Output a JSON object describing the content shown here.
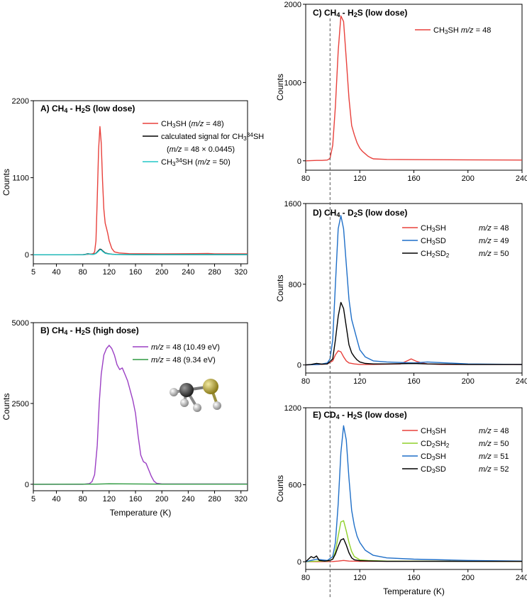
{
  "figure": {
    "x_axis_title": "Temperature (K)",
    "y_axis_title": "Counts"
  },
  "chart_data": [
    {
      "id": "A",
      "type": "line",
      "title": "A) CH₄ - H₂S (low dose)",
      "xlabel": "",
      "ylabel": "Counts",
      "xlim": [
        5,
        330
      ],
      "ylim": [
        -130,
        2200
      ],
      "xticks": [
        5,
        40,
        80,
        120,
        160,
        200,
        240,
        280,
        320
      ],
      "yticks": [
        0,
        1100,
        2200
      ],
      "series": [
        {
          "name": "CH₃SH (m/z = 48)",
          "color": "#e8413c",
          "x": [
            5,
            60,
            84,
            88,
            92,
            96,
            98,
            100,
            102,
            104,
            106,
            108,
            110,
            112,
            114,
            116,
            118,
            120,
            124,
            128,
            135,
            150,
            200,
            250,
            270,
            280,
            330
          ],
          "y": [
            0,
            0,
            3,
            6,
            8,
            15,
            40,
            200,
            800,
            1500,
            1830,
            1600,
            1050,
            650,
            450,
            380,
            300,
            200,
            90,
            40,
            25,
            15,
            12,
            15,
            18,
            12,
            12
          ]
        },
        {
          "name": "calculated signal for CH₃³⁴SH (m/z = 48 × 0.0445)",
          "color": "#000000",
          "x": [
            5,
            80,
            84,
            88,
            92,
            96,
            100,
            104,
            106,
            108,
            110,
            114,
            118,
            124,
            130,
            160,
            330
          ],
          "y": [
            0,
            0,
            5,
            15,
            8,
            5,
            20,
            60,
            80,
            75,
            55,
            25,
            15,
            8,
            4,
            2,
            2
          ]
        },
        {
          "name": "CH₃³⁴SH (m/z = 50)",
          "color": "#22c7c7",
          "x": [
            5,
            80,
            84,
            88,
            92,
            96,
            100,
            104,
            106,
            108,
            110,
            114,
            118,
            124,
            130,
            160,
            330
          ],
          "y": [
            0,
            0,
            3,
            12,
            6,
            4,
            16,
            50,
            72,
            68,
            48,
            20,
            12,
            6,
            3,
            2,
            2
          ]
        }
      ]
    },
    {
      "id": "B",
      "type": "line",
      "title": "B) CH₄ - H₂S (high dose)",
      "xlabel": "Temperature (K)",
      "ylabel": "Counts",
      "xlim": [
        5,
        330
      ],
      "ylim": [
        -200,
        5000
      ],
      "xticks": [
        5,
        40,
        80,
        120,
        160,
        200,
        240,
        280,
        320
      ],
      "yticks": [
        0,
        2500,
        5000
      ],
      "series": [
        {
          "name": "m/z = 48 (10.49 eV)",
          "color": "#9b3fc4",
          "x": [
            5,
            80,
            90,
            94,
            98,
            102,
            105,
            108,
            112,
            116,
            120,
            124,
            128,
            132,
            136,
            140,
            144,
            148,
            152,
            156,
            160,
            164,
            168,
            172,
            176,
            180,
            184,
            188,
            192,
            200,
            250,
            300,
            330
          ],
          "y": [
            0,
            0,
            20,
            80,
            300,
            1200,
            2500,
            3400,
            4000,
            4200,
            4300,
            4200,
            4000,
            3700,
            3550,
            3600,
            3400,
            3200,
            2900,
            2600,
            2200,
            1500,
            900,
            700,
            650,
            450,
            250,
            100,
            30,
            10,
            10,
            10,
            10
          ]
        },
        {
          "name": "m/z = 48 (9.34 eV)",
          "color": "#2e9a40",
          "x": [
            5,
            100,
            120,
            200,
            330
          ],
          "y": [
            0,
            5,
            15,
            5,
            3
          ]
        }
      ]
    },
    {
      "id": "C",
      "type": "line",
      "title": "C) CH₄ - H₂S (low dose)",
      "xlabel": "",
      "ylabel": "Counts",
      "xlim": [
        80,
        240
      ],
      "ylim": [
        -120,
        2000
      ],
      "xticks": [
        80,
        120,
        160,
        200,
        240
      ],
      "yticks": [
        0,
        1000,
        2000
      ],
      "series": [
        {
          "name": "CH₃SH m/z = 48",
          "color": "#e8413c",
          "x": [
            80,
            88,
            92,
            96,
            98,
            100,
            102,
            104,
            106,
            108,
            110,
            112,
            114,
            116,
            118,
            120,
            122,
            124,
            126,
            128,
            130,
            140,
            160,
            200,
            240
          ],
          "y": [
            0,
            5,
            5,
            10,
            30,
            200,
            700,
            1400,
            1850,
            1780,
            1300,
            800,
            450,
            330,
            230,
            160,
            120,
            90,
            60,
            40,
            25,
            18,
            15,
            12,
            10
          ]
        }
      ]
    },
    {
      "id": "D",
      "type": "line",
      "title": "D) CH₄ - D₂S (low dose)",
      "xlabel": "",
      "ylabel": "Counts",
      "xlim": [
        80,
        240
      ],
      "ylim": [
        -80,
        1600
      ],
      "xticks": [
        80,
        120,
        160,
        200,
        240
      ],
      "yticks": [
        0,
        800,
        1600
      ],
      "series": [
        {
          "name": "CH₃SH",
          "mz": "m/z = 48",
          "color": "#e8413c",
          "x": [
            80,
            90,
            96,
            100,
            102,
            104,
            106,
            108,
            110,
            112,
            116,
            120,
            130,
            150,
            155,
            158,
            162,
            166,
            170,
            180,
            240
          ],
          "y": [
            0,
            5,
            10,
            40,
            100,
            140,
            130,
            80,
            40,
            20,
            10,
            5,
            5,
            10,
            40,
            60,
            35,
            20,
            10,
            5,
            5
          ]
        },
        {
          "name": "CH₃SD",
          "mz": "m/z = 49",
          "color": "#1f6fc8",
          "x": [
            80,
            90,
            96,
            98,
            100,
            102,
            104,
            106,
            108,
            110,
            112,
            114,
            116,
            118,
            120,
            124,
            130,
            140,
            160,
            170,
            200,
            240
          ],
          "y": [
            0,
            5,
            20,
            60,
            250,
            800,
            1350,
            1480,
            1350,
            1000,
            650,
            450,
            350,
            250,
            150,
            80,
            40,
            30,
            20,
            30,
            10,
            5
          ]
        },
        {
          "name": "CH₂SD₂",
          "mz": "m/z = 50",
          "color": "#000000",
          "x": [
            80,
            84,
            88,
            92,
            96,
            100,
            102,
            104,
            106,
            108,
            110,
            112,
            114,
            116,
            118,
            120,
            124,
            130,
            140,
            160,
            170,
            200,
            240
          ],
          "y": [
            0,
            5,
            15,
            8,
            10,
            60,
            250,
            480,
            620,
            560,
            380,
            200,
            120,
            80,
            50,
            30,
            15,
            10,
            10,
            15,
            10,
            5,
            5
          ]
        }
      ]
    },
    {
      "id": "E",
      "type": "line",
      "title": "E) CD₄ - H₂S (low dose)",
      "xlabel": "Temperature (K)",
      "ylabel": "Counts",
      "xlim": [
        80,
        240
      ],
      "ylim": [
        -60,
        1200
      ],
      "xticks": [
        80,
        120,
        160,
        200,
        240
      ],
      "yticks": [
        0,
        600,
        1200
      ],
      "series": [
        {
          "name": "CH₃SH",
          "mz": "m/z = 48",
          "color": "#e8413c",
          "x": [
            80,
            100,
            104,
            108,
            112,
            120,
            180,
            240
          ],
          "y": [
            0,
            2,
            5,
            10,
            5,
            3,
            5,
            2
          ]
        },
        {
          "name": "CD₂SH₂",
          "mz": "m/z = 50",
          "color": "#8fd12a",
          "x": [
            80,
            90,
            96,
            100,
            102,
            104,
            106,
            108,
            110,
            112,
            114,
            116,
            120,
            126,
            140,
            240
          ],
          "y": [
            0,
            5,
            5,
            20,
            80,
            200,
            310,
            320,
            240,
            150,
            80,
            40,
            15,
            10,
            5,
            3
          ]
        },
        {
          "name": "CD₃SH",
          "mz": "m/z = 51",
          "color": "#1f6fc8",
          "x": [
            80,
            84,
            88,
            92,
            96,
            100,
            102,
            104,
            106,
            108,
            110,
            112,
            114,
            116,
            118,
            120,
            124,
            130,
            140,
            160,
            200,
            240
          ],
          "y": [
            0,
            10,
            20,
            15,
            10,
            40,
            150,
            450,
            850,
            1060,
            950,
            650,
            400,
            280,
            200,
            150,
            90,
            50,
            30,
            20,
            10,
            5
          ]
        },
        {
          "name": "CD₃SD",
          "mz": "m/z = 52",
          "color": "#000000",
          "x": [
            80,
            82,
            84,
            86,
            88,
            90,
            94,
            98,
            100,
            102,
            104,
            106,
            108,
            110,
            112,
            114,
            116,
            120,
            130,
            140,
            240
          ],
          "y": [
            0,
            20,
            40,
            30,
            45,
            10,
            5,
            10,
            20,
            60,
            120,
            170,
            180,
            130,
            70,
            30,
            15,
            8,
            5,
            3,
            3
          ]
        }
      ]
    }
  ],
  "reference_line": {
    "x": 98,
    "style": "dashed"
  },
  "legend_rich": {
    "A": [
      {
        "parts": [
          [
            "CH",
            ""
          ],
          [
            "3",
            "sub"
          ],
          [
            "SH (",
            ""
          ],
          [
            "m/z",
            "i"
          ],
          [
            " = 48)",
            ""
          ]
        ]
      },
      {
        "parts": [
          [
            "calculated signal for CH",
            ""
          ],
          [
            "3",
            "sub"
          ],
          [
            "34",
            "sup"
          ],
          [
            "SH",
            ""
          ]
        ]
      },
      {
        "indent": true,
        "parts": [
          [
            "(",
            ""
          ],
          [
            "m/z",
            "i"
          ],
          [
            " = 48 × 0.0445)",
            ""
          ]
        ]
      },
      {
        "parts": [
          [
            "CH",
            ""
          ],
          [
            "3",
            "sub"
          ],
          [
            "34",
            "sup"
          ],
          [
            "SH (",
            ""
          ],
          [
            "m/z",
            "i"
          ],
          [
            " = 50)",
            ""
          ]
        ]
      }
    ],
    "B": [
      {
        "parts": [
          [
            "m/z",
            "i"
          ],
          [
            " = 48 (10.49 eV)",
            ""
          ]
        ]
      },
      {
        "parts": [
          [
            "m/z",
            "i"
          ],
          [
            " = 48 (9.34 eV)",
            ""
          ]
        ]
      }
    ],
    "C": [
      {
        "parts": [
          [
            "CH",
            ""
          ],
          [
            "3",
            "sub"
          ],
          [
            "SH ",
            ""
          ],
          [
            "m/z",
            "i"
          ],
          [
            " = 48",
            ""
          ]
        ]
      }
    ],
    "D": [
      {
        "parts": [
          [
            "CH",
            ""
          ],
          [
            "3",
            "sub"
          ],
          [
            "SH",
            ""
          ]
        ],
        "mz": [
          [
            "m/z",
            "i"
          ],
          [
            " = 48",
            ""
          ]
        ]
      },
      {
        "parts": [
          [
            "CH",
            ""
          ],
          [
            "3",
            "sub"
          ],
          [
            "SD",
            ""
          ]
        ],
        "mz": [
          [
            "m/z",
            "i"
          ],
          [
            " = 49",
            ""
          ]
        ]
      },
      {
        "parts": [
          [
            "CH",
            ""
          ],
          [
            "2",
            "sub"
          ],
          [
            "SD",
            ""
          ],
          [
            "2",
            "sub"
          ]
        ],
        "mz": [
          [
            "m/z",
            "i"
          ],
          [
            " = 50",
            ""
          ]
        ]
      }
    ],
    "E": [
      {
        "parts": [
          [
            "CH",
            ""
          ],
          [
            "3",
            "sub"
          ],
          [
            "SH",
            ""
          ]
        ],
        "mz": [
          [
            "m/z",
            "i"
          ],
          [
            " = 48",
            ""
          ]
        ]
      },
      {
        "parts": [
          [
            "CD",
            ""
          ],
          [
            "2",
            "sub"
          ],
          [
            "SH",
            ""
          ],
          [
            "2",
            "sub"
          ]
        ],
        "mz": [
          [
            "m/z",
            "i"
          ],
          [
            " = 50",
            ""
          ]
        ]
      },
      {
        "parts": [
          [
            "CD",
            ""
          ],
          [
            "3",
            "sub"
          ],
          [
            "SH",
            ""
          ]
        ],
        "mz": [
          [
            "m/z",
            "i"
          ],
          [
            " = 51",
            ""
          ]
        ]
      },
      {
        "parts": [
          [
            "CD",
            ""
          ],
          [
            "3",
            "sub"
          ],
          [
            "SD",
            ""
          ]
        ],
        "mz": [
          [
            "m/z",
            "i"
          ],
          [
            " = 52",
            ""
          ]
        ]
      }
    ]
  },
  "title_rich": {
    "A": [
      [
        "A) CH",
        ""
      ],
      [
        "4",
        "sub"
      ],
      [
        " - H",
        ""
      ],
      [
        "2",
        "sub"
      ],
      [
        "S (low dose)",
        ""
      ]
    ],
    "B": [
      [
        "B) CH",
        ""
      ],
      [
        "4",
        "sub"
      ],
      [
        " - H",
        ""
      ],
      [
        "2",
        "sub"
      ],
      [
        "S (high dose)",
        ""
      ]
    ],
    "C": [
      [
        "C) CH",
        ""
      ],
      [
        "4",
        "sub"
      ],
      [
        " - H",
        ""
      ],
      [
        "2",
        "sub"
      ],
      [
        "S (low dose)",
        ""
      ]
    ],
    "D": [
      [
        "D) CH",
        ""
      ],
      [
        "4",
        "sub"
      ],
      [
        " - D",
        ""
      ],
      [
        "2",
        "sub"
      ],
      [
        "S (low dose)",
        ""
      ]
    ],
    "E": [
      [
        "E) CD",
        ""
      ],
      [
        "4",
        "sub"
      ],
      [
        " - H",
        ""
      ],
      [
        "2",
        "sub"
      ],
      [
        "S (low dose)",
        ""
      ]
    ]
  }
}
